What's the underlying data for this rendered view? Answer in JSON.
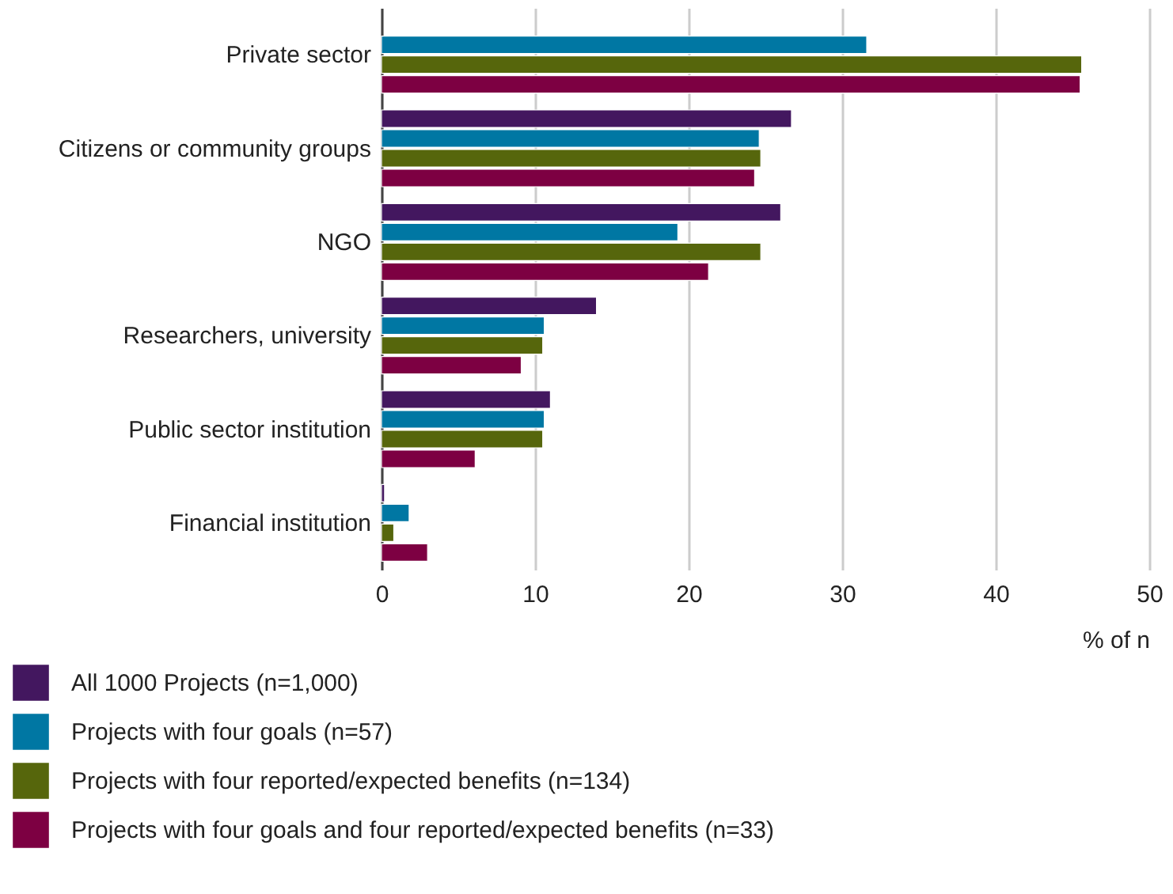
{
  "chart_data": {
    "type": "bar",
    "orientation": "horizontal",
    "xlabel": "% of n",
    "categories": [
      "Private sector",
      "Citizens or community groups",
      "NGO",
      "Researchers, university",
      "Public sector institution",
      "Financial institution"
    ],
    "series": [
      {
        "name": "All 1000 Projects (n=1,000)",
        "color": "#43175f",
        "values": [
          null,
          26.7,
          26.0,
          14.0,
          11.0,
          0.2
        ]
      },
      {
        "name": "Projects with four goals (n=57)",
        "color": "#0077a3",
        "values": [
          31.6,
          24.6,
          19.3,
          10.6,
          10.6,
          1.8
        ]
      },
      {
        "name": "Projects with four reported/expected benefits (n=134)",
        "color": "#56660c",
        "values": [
          45.6,
          24.7,
          24.7,
          10.5,
          10.5,
          0.8
        ]
      },
      {
        "name": "Projects with four goals and four reported/expected benefits (n=33)",
        "color": "#7d0042",
        "values": [
          45.5,
          24.3,
          21.3,
          9.1,
          6.1,
          3.0
        ]
      }
    ],
    "xlim": [
      0,
      50
    ],
    "xticks": [
      0,
      10,
      20,
      30,
      40,
      50
    ],
    "grid": "x",
    "legend": "bottom"
  }
}
